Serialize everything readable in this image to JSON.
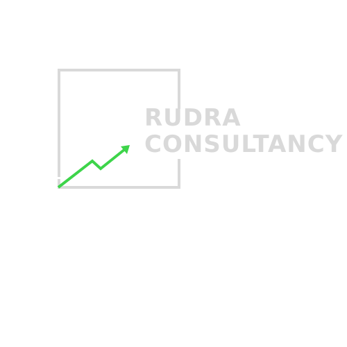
{
  "logo": {
    "line1": "RUDRA",
    "line2": "CONSULTANCY",
    "text_color": "#d9d9d9",
    "frame_color": "#d9d9d9",
    "arrow_color": "#3dd44a",
    "frame_icon": "open-square-frame",
    "arrow_icon": "trend-up-arrow"
  }
}
